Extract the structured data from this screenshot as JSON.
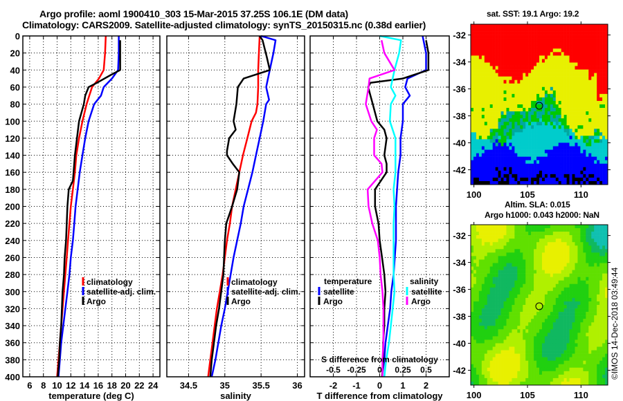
{
  "header": {
    "title_line1": "Argo profile: aoml 1900410_303 15-Mar-2015 37.25S 106.1E (DM data)",
    "title_line2": "Climatology: CARS2009. Satellite-adjusted climatology: synTS_20150315.nc (0.38d earlier)"
  },
  "colors": {
    "climatology": "#ff0000",
    "satellite": "#0000ff",
    "argo": "#000000",
    "salinity_satellite": "#00ffff",
    "salinity_argo": "#ff00ff"
  },
  "chart_data": [
    {
      "type": "line",
      "name": "temperature-profile",
      "xlabel": "temperature (deg C)",
      "ylabel": "",
      "xlim": [
        5,
        25
      ],
      "ylim": [
        400,
        0
      ],
      "xticks": [
        6,
        8,
        10,
        12,
        14,
        16,
        18,
        20,
        22,
        24
      ],
      "yticks": [
        0,
        20,
        40,
        60,
        80,
        100,
        120,
        140,
        160,
        180,
        200,
        220,
        240,
        260,
        280,
        300,
        320,
        340,
        360,
        380,
        400
      ],
      "grid": true,
      "legend": {
        "placement": "lower-right",
        "entries": [
          "climatology",
          "satellite-adj. clim.",
          "Argo"
        ]
      },
      "series": [
        {
          "name": "climatology",
          "color": "#ff0000",
          "depth": [
            0,
            20,
            40,
            50,
            60,
            70,
            80,
            100,
            120,
            140,
            160,
            180,
            200,
            220,
            240,
            260,
            280,
            300,
            320,
            340,
            360,
            380,
            400
          ],
          "values": [
            17.1,
            17.0,
            16.8,
            16.1,
            15.1,
            14.7,
            14.3,
            13.7,
            13.2,
            12.8,
            12.6,
            12.3,
            12.0,
            11.8,
            11.6,
            11.4,
            11.2,
            11.0,
            10.8,
            10.6,
            10.4,
            10.2,
            10.0
          ]
        },
        {
          "name": "satellite-adj. clim.",
          "color": "#0000ff",
          "depth": [
            0,
            20,
            40,
            50,
            60,
            70,
            80,
            100,
            120,
            140,
            160,
            180,
            200,
            220,
            240,
            260,
            280,
            300,
            320,
            340,
            360,
            380,
            400
          ],
          "values": [
            19.0,
            19.0,
            18.9,
            18.0,
            16.8,
            16.4,
            15.4,
            14.6,
            14.1,
            13.7,
            13.3,
            13.0,
            12.7,
            12.5,
            12.3,
            12.0,
            11.8,
            11.5,
            11.2,
            10.9,
            10.6,
            10.4,
            10.2
          ]
        },
        {
          "name": "Argo",
          "color": "#000000",
          "depth": [
            5,
            20,
            40,
            45,
            55,
            60,
            70,
            80,
            100,
            120,
            140,
            160,
            170,
            180,
            200,
            220,
            240,
            260,
            280,
            300,
            320,
            340,
            360,
            380,
            400
          ],
          "values": [
            19.2,
            19.2,
            19.2,
            18.0,
            15.8,
            14.6,
            14.1,
            13.9,
            13.2,
            12.9,
            12.6,
            12.4,
            12.3,
            11.7,
            11.5,
            11.4,
            11.3,
            11.1,
            11.0,
            10.8,
            10.7,
            10.6,
            10.4,
            10.3,
            10.1
          ]
        }
      ]
    },
    {
      "type": "line",
      "name": "salinity-profile",
      "xlabel": "salinity",
      "xlim": [
        34.2,
        36.1
      ],
      "ylim": [
        400,
        0
      ],
      "xticks": [
        34.5,
        35,
        35.5,
        36
      ],
      "grid": true,
      "legend": {
        "placement": "lower-right",
        "entries": [
          "climatology",
          "satellite-adj. clim.",
          "Argo"
        ]
      },
      "series": [
        {
          "name": "climatology",
          "color": "#ff0000",
          "depth": [
            0,
            20,
            40,
            60,
            80,
            90,
            100,
            120,
            140,
            160,
            180,
            200,
            220,
            240,
            260,
            280,
            300,
            320,
            340,
            360,
            380,
            400
          ],
          "values": [
            35.48,
            35.47,
            35.46,
            35.46,
            35.45,
            35.43,
            35.37,
            35.31,
            35.25,
            35.2,
            35.15,
            35.1,
            35.07,
            35.03,
            35.0,
            34.97,
            34.93,
            34.89,
            34.86,
            34.83,
            34.8,
            34.77
          ]
        },
        {
          "name": "satellite-adj. clim.",
          "color": "#0000ff",
          "depth": [
            0,
            5,
            20,
            40,
            60,
            75,
            80,
            100,
            120,
            140,
            160,
            180,
            200,
            220,
            240,
            260,
            280,
            300,
            320,
            340,
            360,
            380,
            400
          ],
          "values": [
            35.5,
            35.7,
            35.67,
            35.62,
            35.57,
            35.61,
            35.57,
            35.53,
            35.48,
            35.43,
            35.38,
            35.32,
            35.26,
            35.22,
            35.17,
            35.12,
            35.08,
            35.04,
            35.0,
            34.95,
            34.91,
            34.87,
            34.82
          ]
        },
        {
          "name": "Argo",
          "color": "#000000",
          "depth": [
            0,
            5,
            25,
            40,
            50,
            60,
            80,
            100,
            110,
            120,
            135,
            140,
            150,
            160,
            180,
            200,
            220,
            240,
            260,
            280,
            300,
            320,
            340,
            360,
            380,
            400
          ],
          "values": [
            35.48,
            35.52,
            35.58,
            35.62,
            35.26,
            35.18,
            35.16,
            35.12,
            35.15,
            35.06,
            35.03,
            35.03,
            35.11,
            35.2,
            35.17,
            35.1,
            35.02,
            35.0,
            34.99,
            34.98,
            34.95,
            34.92,
            34.88,
            34.85,
            34.82,
            34.8
          ]
        }
      ]
    },
    {
      "type": "line",
      "name": "difference-profile",
      "xlabel": "T difference from climatology",
      "secondary_xlabel": "S difference from climatology",
      "xlim": [
        -3,
        3
      ],
      "ylim": [
        400,
        0
      ],
      "xticks": [
        -2,
        -1,
        0,
        1,
        2
      ],
      "secondary_xticks": [
        -0.5,
        -0.25,
        0,
        0.25,
        0.5
      ],
      "secondary_xlim": [
        -0.75,
        0.75
      ],
      "grid": true,
      "legend": {
        "placement": "lower-center",
        "temperature_header": "temperature",
        "salinity_header": "salinity",
        "entries_temperature": [
          "satellite",
          "Argo"
        ],
        "entries_salinity": [
          "satellite",
          "Argo"
        ]
      },
      "series": [
        {
          "name": "temperature satellite",
          "axis": "T",
          "color": "#0000ff",
          "depth": [
            0,
            20,
            40,
            50,
            60,
            70,
            80,
            100,
            120,
            140,
            160,
            180,
            200,
            220,
            240,
            260,
            280,
            300,
            320,
            340,
            360,
            380,
            400
          ],
          "values": [
            1.85,
            2.0,
            2.0,
            1.2,
            1.1,
            1.3,
            1.0,
            1.0,
            0.9,
            0.9,
            0.8,
            0.75,
            0.7,
            0.7,
            0.7,
            0.65,
            0.6,
            0.5,
            0.45,
            0.35,
            0.25,
            0.2,
            0.1
          ]
        },
        {
          "name": "temperature Argo",
          "axis": "T",
          "color": "#000000",
          "depth": [
            5,
            20,
            40,
            50,
            55,
            60,
            80,
            100,
            110,
            120,
            140,
            150,
            160,
            180,
            200,
            220,
            240,
            260,
            280,
            300,
            320,
            340,
            360,
            380,
            400
          ],
          "values": [
            2.0,
            2.1,
            2.1,
            1.0,
            -0.4,
            -0.5,
            -0.3,
            -0.1,
            0.2,
            0.3,
            0.2,
            0.3,
            0.3,
            -0.2,
            -0.2,
            -0.05,
            0.0,
            0.1,
            0.2,
            0.25,
            0.2,
            0.2,
            0.15,
            0.15,
            0.1
          ]
        },
        {
          "name": "salinity satellite",
          "axis": "S",
          "color": "#00ffff",
          "depth": [
            0,
            5,
            20,
            40,
            60,
            70,
            80,
            100,
            120,
            140,
            160,
            180,
            200,
            220,
            240,
            260,
            280,
            300,
            320,
            340,
            360,
            380,
            400
          ],
          "values": [
            0.0,
            0.23,
            0.21,
            0.16,
            0.12,
            0.17,
            0.12,
            0.11,
            0.17,
            0.17,
            0.17,
            0.15,
            0.16,
            0.15,
            0.15,
            0.15,
            0.15,
            0.16,
            0.14,
            0.12,
            0.1,
            0.07,
            0.05
          ]
        },
        {
          "name": "salinity Argo",
          "axis": "S",
          "color": "#ff00ff",
          "depth": [
            5,
            20,
            40,
            50,
            60,
            80,
            100,
            110,
            120,
            140,
            150,
            160,
            180,
            200,
            220,
            240,
            260,
            280,
            300,
            320,
            340,
            360,
            380,
            400
          ],
          "values": [
            0.02,
            0.05,
            0.16,
            -0.11,
            -0.12,
            -0.15,
            -0.09,
            -0.03,
            -0.06,
            -0.06,
            0.02,
            0.03,
            -0.13,
            -0.12,
            -0.08,
            -0.02,
            0.0,
            0.01,
            0.03,
            0.04,
            0.04,
            0.04,
            0.03,
            0.03
          ]
        }
      ]
    },
    {
      "type": "heatmap",
      "name": "sst-map",
      "title": "sat. SST: 19.1 Argo: 19.2",
      "xlim": [
        99.7,
        112.5
      ],
      "ylim": [
        -43.1,
        -31.2
      ],
      "xticks": [
        100,
        105,
        110
      ],
      "yticks": [
        -32,
        -34,
        -36,
        -38,
        -40,
        -42
      ],
      "marker": {
        "lon": 106.1,
        "lat": -37.25
      },
      "color_classes": [
        "#000000",
        "#0000ff",
        "#00cccc",
        "#00c800",
        "#e8f000",
        "#ff0000"
      ]
    },
    {
      "type": "heatmap",
      "name": "sla-map",
      "title_line1": "Altim. SLA: 0.015",
      "title_line2": "Argo h1000: 0.043 h2000: NaN",
      "xlim": [
        99.7,
        112.5
      ],
      "ylim": [
        -43.1,
        -31.2
      ],
      "xticks": [
        100,
        105,
        110
      ],
      "yticks": [
        -32,
        -34,
        -36,
        -38,
        -40,
        -42
      ],
      "marker": {
        "lon": 106.1,
        "lat": -37.25
      }
    }
  ],
  "footer": {
    "copyright": "©IMOS 14-Dec-2018 03:49:44"
  }
}
